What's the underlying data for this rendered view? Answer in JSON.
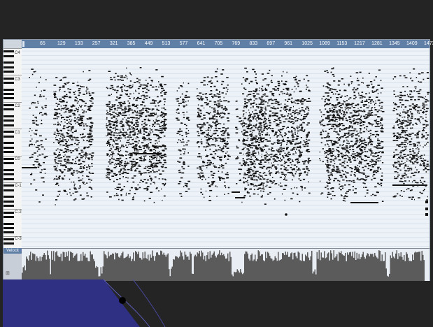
{
  "ruler": {
    "bars": [
      "65",
      "129",
      "193",
      "257",
      "321",
      "385",
      "449",
      "513",
      "577",
      "641",
      "705",
      "769",
      "833",
      "897",
      "961",
      "1025",
      "1089",
      "1153",
      "1217",
      "1281",
      "1345",
      "1409",
      "1473"
    ]
  },
  "keyboard": {
    "octave_labels": [
      "C4",
      "C3",
      "C2",
      "C1",
      "C0",
      "C-1",
      "C-2",
      "C-3",
      "C-4",
      "C-5"
    ]
  },
  "velocity": {
    "label": "Velocit"
  },
  "colors": {
    "ruler": "#5f7fa7",
    "roll_bg": "#edf2f8",
    "note": "#111111",
    "velocity_fill": "#5b5b5b",
    "decor_blue": "#2f2f84"
  },
  "icons": {
    "ruler_marker": "position-marker-icon",
    "velocity_handle": "resize-handle-icon"
  }
}
